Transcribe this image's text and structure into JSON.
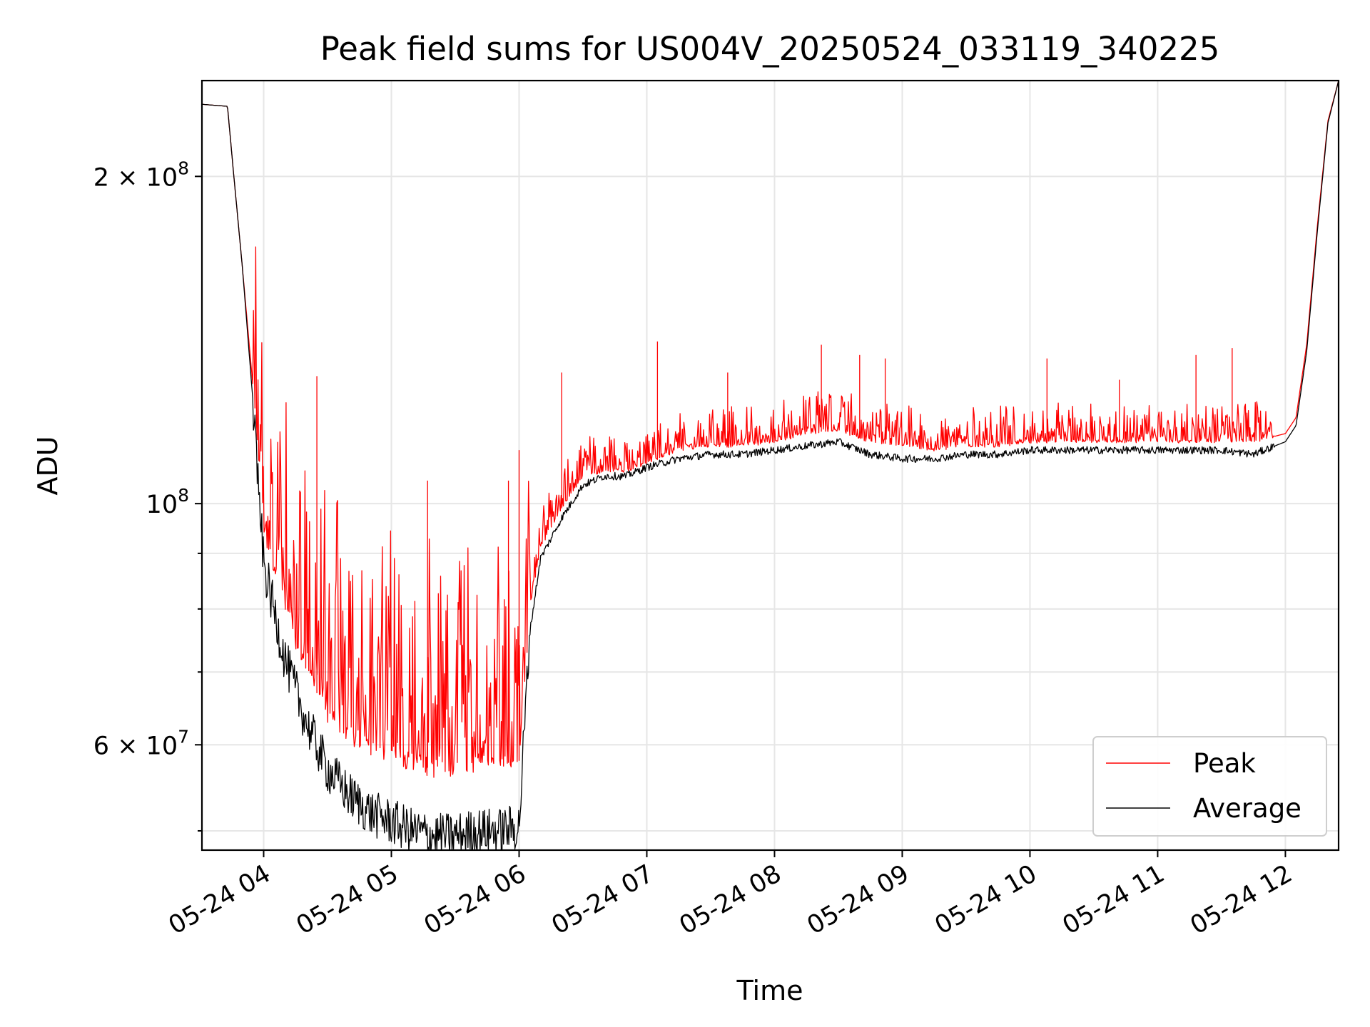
{
  "chart_data": {
    "type": "line",
    "title": "Peak field sums for US004V_20250524_033119_340225",
    "xlabel": "Time",
    "ylabel": "ADU",
    "y_scale": "log",
    "ylim": [
      48000000,
      245000000
    ],
    "xlim": [
      "2025-05-24 03:31",
      "2025-05-24 12:25"
    ],
    "grid": true,
    "legend_position": "lower-right",
    "x_ticks": [
      {
        "value": "2025-05-24 04:00",
        "label": "05-24 04"
      },
      {
        "value": "2025-05-24 05:00",
        "label": "05-24 05"
      },
      {
        "value": "2025-05-24 06:00",
        "label": "05-24 06"
      },
      {
        "value": "2025-05-24 07:00",
        "label": "05-24 07"
      },
      {
        "value": "2025-05-24 08:00",
        "label": "05-24 08"
      },
      {
        "value": "2025-05-24 09:00",
        "label": "05-24 09"
      },
      {
        "value": "2025-05-24 10:00",
        "label": "05-24 10"
      },
      {
        "value": "2025-05-24 11:00",
        "label": "05-24 11"
      },
      {
        "value": "2025-05-24 12:00",
        "label": "05-24 12"
      }
    ],
    "y_major_ticks": [
      {
        "value": 60000000,
        "mantissa": "6",
        "exponent": "7"
      },
      {
        "value": 100000000,
        "mantissa": "",
        "exponent": "8"
      },
      {
        "value": 200000000,
        "mantissa": "2",
        "exponent": "8"
      }
    ],
    "y_minor_ticks": [
      50000000,
      70000000,
      80000000,
      90000000
    ],
    "series": [
      {
        "name": "Peak",
        "color": "#ff0000",
        "x": [
          "2025-05-24 03:31",
          "2025-05-24 03:43",
          "2025-05-24 03:46",
          "2025-05-24 03:50",
          "2025-05-24 03:55",
          "2025-05-24 04:00",
          "2025-05-24 04:10",
          "2025-05-24 04:20",
          "2025-05-24 04:30",
          "2025-05-24 04:40",
          "2025-05-24 04:50",
          "2025-05-24 05:00",
          "2025-05-24 05:10",
          "2025-05-24 05:20",
          "2025-05-24 05:30",
          "2025-05-24 05:40",
          "2025-05-24 05:50",
          "2025-05-24 06:00",
          "2025-05-24 06:05",
          "2025-05-24 06:10",
          "2025-05-24 06:20",
          "2025-05-24 06:30",
          "2025-05-24 06:40",
          "2025-05-24 06:50",
          "2025-05-24 07:00",
          "2025-05-24 07:15",
          "2025-05-24 07:30",
          "2025-05-24 07:45",
          "2025-05-24 08:00",
          "2025-05-24 08:15",
          "2025-05-24 08:30",
          "2025-05-24 08:45",
          "2025-05-24 09:00",
          "2025-05-24 09:15",
          "2025-05-24 09:30",
          "2025-05-24 09:45",
          "2025-05-24 10:00",
          "2025-05-24 10:15",
          "2025-05-24 10:30",
          "2025-05-24 10:45",
          "2025-05-24 11:00",
          "2025-05-24 11:15",
          "2025-05-24 11:30",
          "2025-05-24 11:45",
          "2025-05-24 12:00",
          "2025-05-24 12:05",
          "2025-05-24 12:10",
          "2025-05-24 12:15",
          "2025-05-24 12:20",
          "2025-05-24 12:25"
        ],
        "y": [
          233000000,
          232000000,
          200000000,
          165000000,
          128000000,
          95000000,
          79000000,
          70000000,
          64000000,
          61000000,
          60000000,
          58000000,
          57500000,
          57000000,
          57000000,
          57500000,
          57500000,
          58000000,
          80000000,
          91000000,
          99000000,
          106000000,
          107000000,
          107000000,
          109000000,
          112000000,
          113000000,
          113000000,
          114000000,
          116000000,
          117000000,
          114000000,
          113000000,
          112000000,
          113000000,
          113000000,
          114000000,
          114000000,
          114000000,
          114000000,
          114000000,
          114000000,
          114000000,
          114000000,
          116000000,
          120000000,
          140000000,
          180000000,
          225000000,
          245000000
        ],
        "spikes": [
          {
            "x": "2025-05-24 04:25",
            "y": 131000000
          },
          {
            "x": "2025-05-24 05:17",
            "y": 105000000
          },
          {
            "x": "2025-05-24 05:55",
            "y": 105000000
          },
          {
            "x": "2025-05-24 06:00",
            "y": 112000000
          },
          {
            "x": "2025-05-24 06:20",
            "y": 132000000
          },
          {
            "x": "2025-05-24 07:05",
            "y": 141000000
          },
          {
            "x": "2025-05-24 07:38",
            "y": 132000000
          },
          {
            "x": "2025-05-24 08:22",
            "y": 140000000
          },
          {
            "x": "2025-05-24 08:40",
            "y": 137000000
          },
          {
            "x": "2025-05-24 08:52",
            "y": 136000000
          },
          {
            "x": "2025-05-24 10:08",
            "y": 136000000
          },
          {
            "x": "2025-05-24 10:42",
            "y": 130000000
          },
          {
            "x": "2025-05-24 11:18",
            "y": 137000000
          },
          {
            "x": "2025-05-24 11:35",
            "y": 139000000
          }
        ],
        "noise_range": [
          {
            "from": "2025-05-24 03:55",
            "to": "2025-05-24 06:05",
            "amplitude": 0.28
          },
          {
            "from": "2025-05-24 06:05",
            "to": "2025-05-24 11:55",
            "amplitude": 0.04
          }
        ]
      },
      {
        "name": "Average",
        "color": "#000000",
        "x": [
          "2025-05-24 03:31",
          "2025-05-24 03:43",
          "2025-05-24 03:46",
          "2025-05-24 03:50",
          "2025-05-24 03:55",
          "2025-05-24 04:00",
          "2025-05-24 04:10",
          "2025-05-24 04:20",
          "2025-05-24 04:30",
          "2025-05-24 04:40",
          "2025-05-24 04:50",
          "2025-05-24 05:00",
          "2025-05-24 05:10",
          "2025-05-24 05:20",
          "2025-05-24 05:30",
          "2025-05-24 05:40",
          "2025-05-24 05:50",
          "2025-05-24 06:00",
          "2025-05-24 06:05",
          "2025-05-24 06:10",
          "2025-05-24 06:20",
          "2025-05-24 06:30",
          "2025-05-24 06:40",
          "2025-05-24 06:50",
          "2025-05-24 07:00",
          "2025-05-24 07:15",
          "2025-05-24 07:30",
          "2025-05-24 07:45",
          "2025-05-24 08:00",
          "2025-05-24 08:15",
          "2025-05-24 08:30",
          "2025-05-24 08:45",
          "2025-05-24 09:00",
          "2025-05-24 09:15",
          "2025-05-24 09:30",
          "2025-05-24 09:45",
          "2025-05-24 10:00",
          "2025-05-24 10:15",
          "2025-05-24 10:30",
          "2025-05-24 10:45",
          "2025-05-24 11:00",
          "2025-05-24 11:15",
          "2025-05-24 11:30",
          "2025-05-24 11:45",
          "2025-05-24 12:00",
          "2025-05-24 12:05",
          "2025-05-24 12:10",
          "2025-05-24 12:15",
          "2025-05-24 12:20",
          "2025-05-24 12:25"
        ],
        "y": [
          233000000,
          232000000,
          200000000,
          165000000,
          124000000,
          88000000,
          72000000,
          63000000,
          57000000,
          54000000,
          52000000,
          51000000,
          50000000,
          49500000,
          49500000,
          50000000,
          50000000,
          50500000,
          76000000,
          89000000,
          97000000,
          104000000,
          106000000,
          106000000,
          108000000,
          110000000,
          111000000,
          111000000,
          112000000,
          113000000,
          114000000,
          111000000,
          110000000,
          110000000,
          111000000,
          111000000,
          112000000,
          112000000,
          112000000,
          112000000,
          112000000,
          112000000,
          112000000,
          111000000,
          114000000,
          118000000,
          138000000,
          178000000,
          224000000,
          245000000
        ],
        "noise_range": [
          {
            "from": "2025-05-24 03:55",
            "to": "2025-05-24 06:05",
            "amplitude": 0.05
          },
          {
            "from": "2025-05-24 06:05",
            "to": "2025-05-24 11:55",
            "amplitude": 0.008
          }
        ]
      }
    ]
  }
}
